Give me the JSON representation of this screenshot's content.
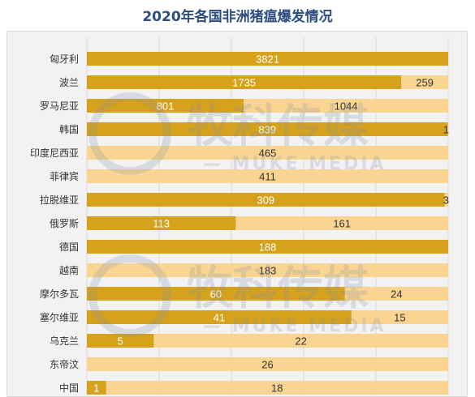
{
  "chart_data": {
    "type": "bar",
    "stacked": true,
    "orientation": "horizontal",
    "title": "2020年各国非洲猪瘟爆发情况",
    "categories": [
      "匈牙利",
      "波兰",
      "罗马尼亚",
      "韩国",
      "印度尼西亚",
      "菲律宾",
      "拉脱维亚",
      "俄罗斯",
      "德国",
      "越南",
      "摩尔多瓦",
      "塞尔维亚",
      "乌克兰",
      "东帝汶",
      "中国"
    ],
    "series": [
      {
        "values": [
          3821,
          1735,
          801,
          839,
          null,
          null,
          309,
          113,
          188,
          null,
          60,
          41,
          5,
          null,
          1
        ]
      },
      {
        "values": [
          null,
          259,
          1044,
          1,
          465,
          411,
          3,
          161,
          null,
          183,
          24,
          15,
          22,
          26,
          18
        ]
      }
    ],
    "ratio_first": [
      1.0,
      0.87,
      0.434,
      0.999,
      0,
      0,
      0.99,
      0.412,
      1.0,
      0,
      0.714,
      0.732,
      0.185,
      0,
      0.053
    ],
    "colors": {
      "first": "#d6a21c",
      "second": "#fad592",
      "text_dark": "#333333",
      "text_light": "#ffffff",
      "grid": "#d9d9d9"
    },
    "grid": true,
    "legend": "none",
    "watermark": {
      "brand_cn": "牧科传媒",
      "brand_en": "MUKE MEDIA"
    }
  }
}
